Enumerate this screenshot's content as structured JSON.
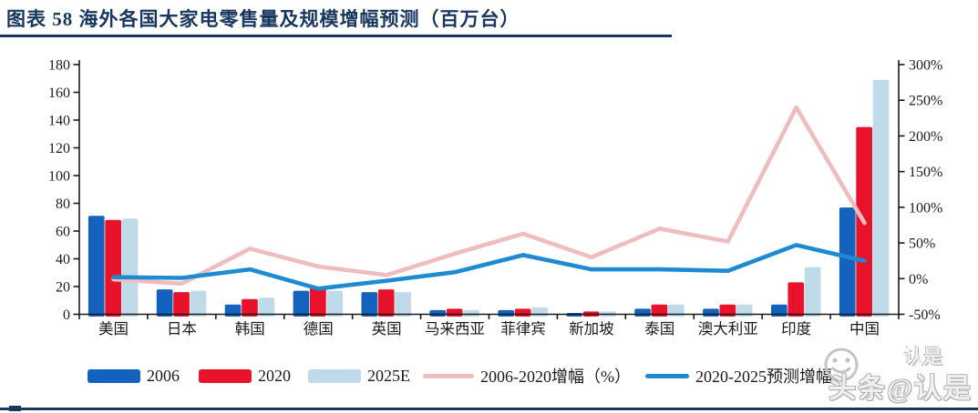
{
  "figure": {
    "title": "图表 58  海外各国大家电零售量及规模增幅预测（百万台）",
    "accent_color": "#17375E",
    "watermark": {
      "big_text": "头条@认是",
      "small_text": "认是"
    }
  },
  "chart_data": {
    "type": "combo-bar-line",
    "title": "海外各国大家电零售量及规模增幅预测（百万台）",
    "categories": [
      "美国",
      "日本",
      "韩国",
      "德国",
      "英国",
      "马来西亚",
      "菲律宾",
      "新加坡",
      "泰国",
      "澳大利亚",
      "印度",
      "中国"
    ],
    "series": [
      {
        "name": "2006",
        "type": "bar",
        "axis": "left",
        "color": "#1362BE",
        "values": [
          71,
          18,
          7,
          17,
          16,
          3,
          3,
          1,
          4,
          4,
          7,
          77
        ]
      },
      {
        "name": "2020",
        "type": "bar",
        "axis": "left",
        "color": "#E8132B",
        "values": [
          68,
          16,
          11,
          20,
          18,
          4,
          4,
          2,
          7,
          7,
          23,
          135
        ]
      },
      {
        "name": "2025E",
        "type": "bar",
        "axis": "left",
        "color": "#BFDBE9",
        "values": [
          69,
          17,
          12,
          17,
          16,
          3,
          5,
          2,
          7,
          7,
          34,
          169
        ]
      },
      {
        "name": "2006-2020增幅（%）",
        "type": "line",
        "axis": "right",
        "color": "#F0BDBF",
        "values": [
          -1,
          -7,
          42,
          17,
          5,
          35,
          63,
          30,
          70,
          52,
          240,
          78
        ]
      },
      {
        "name": "2020-2025预测增幅",
        "type": "line",
        "axis": "right",
        "color": "#1E8AD2",
        "values": [
          2,
          1,
          13,
          -14,
          -3,
          9,
          33,
          13,
          13,
          11,
          47,
          25
        ]
      }
    ],
    "left_axis": {
      "min": 0,
      "max": 180,
      "step": 20
    },
    "right_axis": {
      "min": -50,
      "max": 300,
      "step": 50,
      "unit": "%"
    },
    "legend_position": "bottom",
    "grid": false,
    "background": "#ffffff"
  }
}
